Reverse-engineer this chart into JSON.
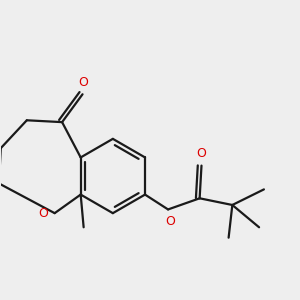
{
  "bg_color": "#eeeeee",
  "bond_color": "#1a1a1a",
  "oxygen_color": "#dd0000",
  "line_width": 1.6,
  "figsize": [
    3.0,
    3.0
  ],
  "dpi": 100,
  "font_size": 9.0,
  "xlim": [
    -1.5,
    6.5
  ],
  "ylim": [
    -2.0,
    4.0
  ]
}
